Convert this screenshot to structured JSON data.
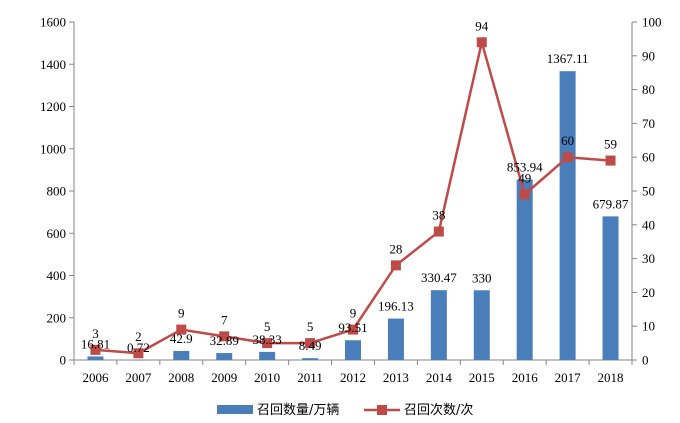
{
  "chart_data": {
    "type": "bar+line",
    "categories": [
      "2006",
      "2007",
      "2008",
      "2009",
      "2010",
      "2011",
      "2012",
      "2013",
      "2014",
      "2015",
      "2016",
      "2017",
      "2018"
    ],
    "series": [
      {
        "name": "召回数量/万辆",
        "type": "bar",
        "axis": "left",
        "color": "#4a7ebb",
        "values": [
          16.81,
          0.72,
          42.9,
          32.89,
          38.33,
          8.49,
          93.51,
          196.13,
          330.47,
          330,
          853.94,
          1367.11,
          679.87
        ],
        "labels": [
          "16.81",
          "0.72",
          "42.9",
          "32.89",
          "38.33",
          "8.49",
          "93.51",
          "196.13",
          "330.47",
          "330",
          "853.94",
          "1367.11",
          "679.87"
        ]
      },
      {
        "name": "召回次数/次",
        "type": "line",
        "axis": "right",
        "color": "#be4b48",
        "values": [
          3,
          2,
          9,
          7,
          5,
          5,
          9,
          28,
          38,
          94,
          49,
          60,
          59
        ],
        "labels": [
          "3",
          "2",
          "9",
          "7",
          "5",
          "5",
          "9",
          "28",
          "38",
          "94",
          "49",
          "60",
          "59"
        ]
      }
    ],
    "y_left": {
      "min": 0,
      "max": 1600,
      "ticks": [
        "0",
        "200",
        "400",
        "600",
        "800",
        "1000",
        "1200",
        "1400",
        "1600"
      ]
    },
    "y_right": {
      "min": 0,
      "max": 100,
      "ticks": [
        "0",
        "10",
        "20",
        "30",
        "40",
        "50",
        "60",
        "70",
        "80",
        "90",
        "100"
      ]
    },
    "grid": false,
    "legend_position": "bottom"
  }
}
